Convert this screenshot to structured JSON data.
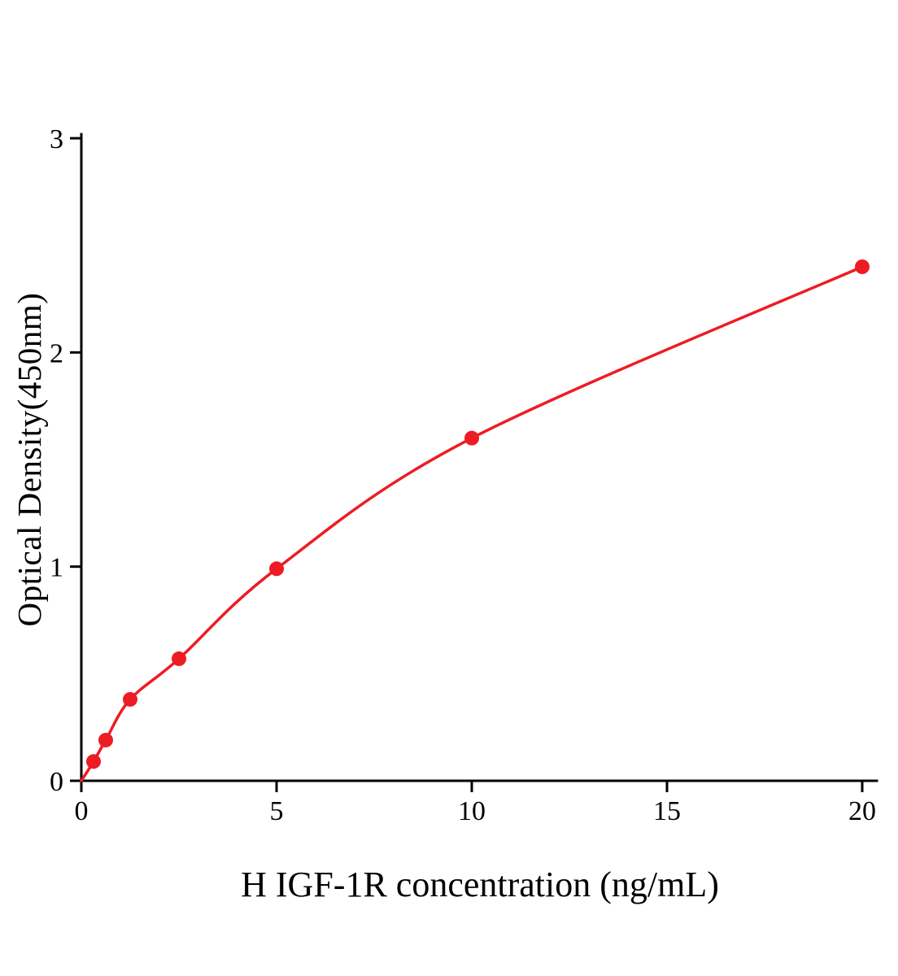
{
  "chart_data": {
    "type": "scatter",
    "title": "",
    "xlabel": "H IGF-1R concentration (ng/mL)",
    "ylabel": "Optical Density(450nm)",
    "x": [
      0.3125,
      0.625,
      1.25,
      2.5,
      5,
      10,
      20
    ],
    "y": [
      0.09,
      0.19,
      0.38,
      0.57,
      0.99,
      1.6,
      2.4
    ],
    "curve_starts_at_origin": true,
    "xlim": [
      0,
      20
    ],
    "ylim": [
      0,
      3
    ],
    "xticks": [
      0,
      5,
      10,
      15,
      20
    ],
    "yticks": [
      0,
      1,
      2,
      3
    ],
    "grid": false,
    "legend": null,
    "series_color": "#ed1c24",
    "axis_color": "#000000"
  }
}
